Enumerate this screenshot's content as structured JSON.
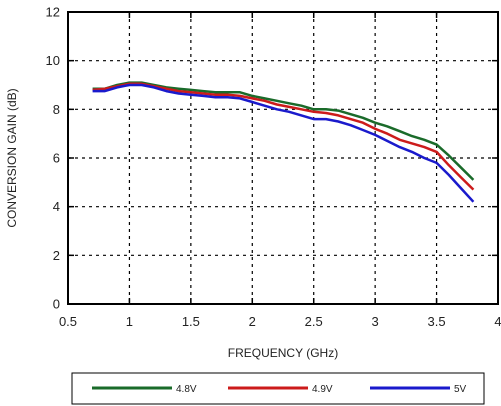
{
  "chart_data": {
    "type": "line",
    "title": "",
    "xlabel": "FREQUENCY (GHz)",
    "ylabel": "CONVERSION GAIN (dB)",
    "xlim": [
      0.5,
      4
    ],
    "ylim": [
      0,
      12
    ],
    "xticks": [
      0.5,
      1,
      1.5,
      2,
      2.5,
      3,
      3.5,
      4
    ],
    "xtick_labels": [
      "0.5",
      "1",
      "1.5",
      "2",
      "2.5",
      "3",
      "3.5",
      "4"
    ],
    "yticks": [
      0,
      2,
      4,
      6,
      8,
      10,
      12
    ],
    "ytick_labels": [
      "0",
      "2",
      "4",
      "6",
      "8",
      "10",
      "12"
    ],
    "grid": true,
    "legend_position": "bottom",
    "series": [
      {
        "name": "4.8V",
        "color": "#1a6b2a",
        "x": [
          0.7,
          0.8,
          0.9,
          1.0,
          1.1,
          1.2,
          1.3,
          1.4,
          1.5,
          1.6,
          1.7,
          1.8,
          1.9,
          2.0,
          2.1,
          2.2,
          2.3,
          2.4,
          2.5,
          2.6,
          2.7,
          2.8,
          2.9,
          3.0,
          3.1,
          3.2,
          3.3,
          3.4,
          3.5,
          3.6,
          3.7,
          3.8
        ],
        "values": [
          8.85,
          8.85,
          9.0,
          9.1,
          9.1,
          9.0,
          8.9,
          8.85,
          8.8,
          8.75,
          8.7,
          8.7,
          8.7,
          8.55,
          8.45,
          8.35,
          8.25,
          8.15,
          8.0,
          8.0,
          7.95,
          7.8,
          7.65,
          7.45,
          7.3,
          7.1,
          6.9,
          6.75,
          6.55,
          6.1,
          5.6,
          5.1
        ]
      },
      {
        "name": "4.9V",
        "color": "#cc1b1b",
        "x": [
          0.7,
          0.8,
          0.9,
          1.0,
          1.1,
          1.2,
          1.3,
          1.4,
          1.5,
          1.6,
          1.7,
          1.8,
          1.9,
          2.0,
          2.1,
          2.2,
          2.3,
          2.4,
          2.5,
          2.6,
          2.7,
          2.8,
          2.9,
          3.0,
          3.1,
          3.2,
          3.3,
          3.4,
          3.5,
          3.6,
          3.7,
          3.8
        ],
        "values": [
          8.8,
          8.85,
          8.95,
          9.05,
          9.05,
          8.95,
          8.85,
          8.75,
          8.7,
          8.65,
          8.6,
          8.6,
          8.55,
          8.45,
          8.35,
          8.2,
          8.1,
          8.0,
          7.9,
          7.85,
          7.75,
          7.6,
          7.45,
          7.2,
          7.0,
          6.75,
          6.6,
          6.45,
          6.25,
          5.7,
          5.2,
          4.7
        ]
      },
      {
        "name": "5V",
        "color": "#1a1acc",
        "x": [
          0.7,
          0.8,
          0.9,
          1.0,
          1.1,
          1.2,
          1.3,
          1.4,
          1.5,
          1.6,
          1.7,
          1.8,
          1.9,
          2.0,
          2.1,
          2.2,
          2.3,
          2.4,
          2.5,
          2.6,
          2.7,
          2.8,
          2.9,
          3.0,
          3.1,
          3.2,
          3.3,
          3.4,
          3.5,
          3.6,
          3.7,
          3.8
        ],
        "values": [
          8.75,
          8.75,
          8.9,
          9.0,
          9.0,
          8.9,
          8.75,
          8.65,
          8.6,
          8.55,
          8.5,
          8.5,
          8.45,
          8.3,
          8.15,
          8.0,
          7.9,
          7.75,
          7.6,
          7.6,
          7.5,
          7.35,
          7.15,
          6.95,
          6.7,
          6.45,
          6.25,
          6.0,
          5.8,
          5.3,
          4.75,
          4.2
        ]
      }
    ]
  }
}
